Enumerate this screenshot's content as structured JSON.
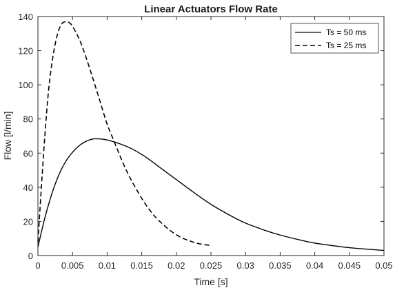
{
  "chart_data": {
    "type": "line",
    "title": "Linear Actuators Flow Rate",
    "xlabel": "Time [s]",
    "ylabel": "Flow [l/min]",
    "xlim": [
      0,
      0.05
    ],
    "ylim": [
      0,
      140
    ],
    "xticks": [
      0,
      0.005,
      0.01,
      0.015,
      0.02,
      0.025,
      0.03,
      0.035,
      0.04,
      0.045,
      0.05
    ],
    "yticks": [
      0,
      20,
      40,
      60,
      80,
      100,
      120,
      140
    ],
    "grid": false,
    "legend_position": "top-right",
    "series": [
      {
        "name": "Ts = 50 ms",
        "style": "solid",
        "color": "#000000",
        "x": [
          0,
          0.001,
          0.002,
          0.003,
          0.004,
          0.005,
          0.006,
          0.007,
          0.008,
          0.009,
          0.01,
          0.011,
          0.012,
          0.013,
          0.014,
          0.015,
          0.016,
          0.018,
          0.02,
          0.022,
          0.025,
          0.028,
          0.03,
          0.033,
          0.035,
          0.038,
          0.04,
          0.043,
          0.045,
          0.048,
          0.05
        ],
        "y": [
          5,
          22,
          36,
          47,
          55,
          60.5,
          64.5,
          67,
          68.3,
          68.3,
          67.7,
          66.6,
          65.2,
          63.6,
          61.6,
          59.2,
          56.5,
          50.5,
          44.5,
          38.5,
          30,
          23,
          19,
          14.5,
          12,
          9,
          7.3,
          5.6,
          4.6,
          3.6,
          3
        ]
      },
      {
        "name": "Ts = 25 ms",
        "style": "dashed",
        "color": "#000000",
        "x": [
          0,
          0.0005,
          0.001,
          0.0015,
          0.002,
          0.0025,
          0.003,
          0.0035,
          0.004,
          0.0045,
          0.005,
          0.006,
          0.007,
          0.008,
          0.009,
          0.01,
          0.011,
          0.012,
          0.013,
          0.014,
          0.015,
          0.016,
          0.017,
          0.018,
          0.019,
          0.02,
          0.021,
          0.022,
          0.023,
          0.024,
          0.025
        ],
        "y": [
          8,
          40,
          70,
          95,
          112,
          124,
          132,
          136,
          137,
          136.5,
          134.3,
          126.5,
          115.5,
          103,
          90,
          77,
          67,
          57,
          48,
          40.5,
          33.5,
          27.5,
          22.5,
          18.5,
          15,
          12.2,
          10,
          8.5,
          7.2,
          6.4,
          6
        ]
      }
    ]
  }
}
